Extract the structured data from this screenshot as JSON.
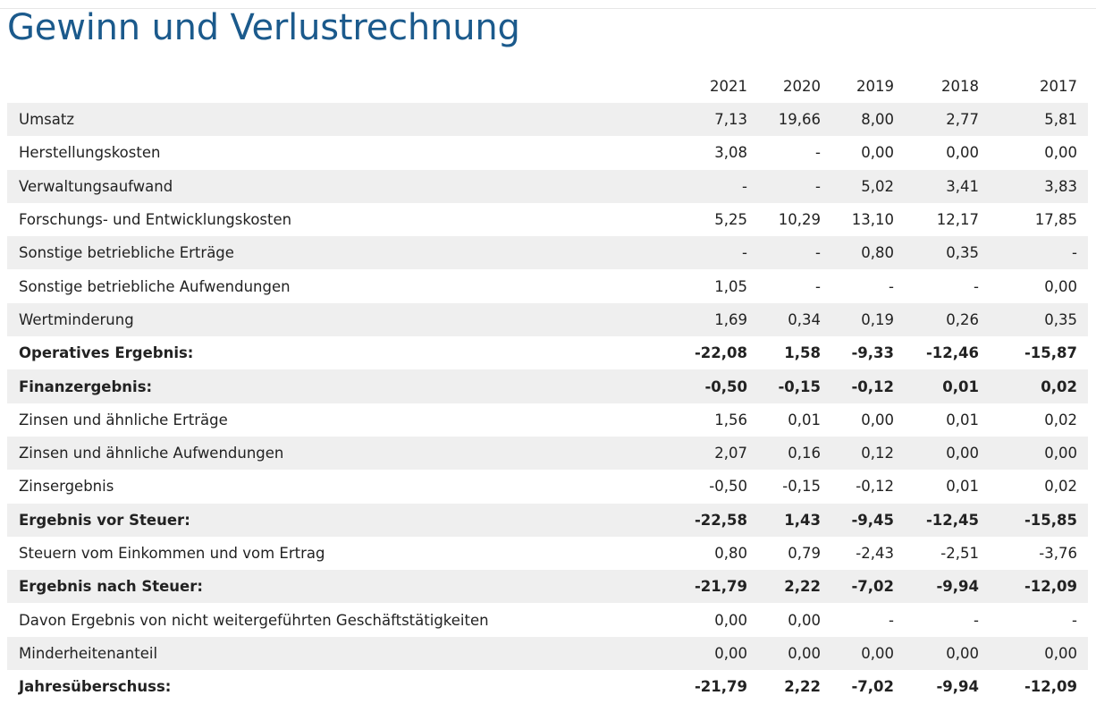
{
  "title": "Gewinn und Verlustrechnung",
  "years": [
    "2021",
    "2020",
    "2019",
    "2018",
    "2017"
  ],
  "rows": [
    {
      "label": "Umsatz",
      "bold": false,
      "values": [
        "7,13",
        "19,66",
        "8,00",
        "2,77",
        "5,81"
      ]
    },
    {
      "label": "Herstellungskosten",
      "bold": false,
      "values": [
        "3,08",
        "-",
        "0,00",
        "0,00",
        "0,00"
      ]
    },
    {
      "label": "Verwaltungsaufwand",
      "bold": false,
      "values": [
        "-",
        "-",
        "5,02",
        "3,41",
        "3,83"
      ]
    },
    {
      "label": "Forschungs- und Entwicklungskosten",
      "bold": false,
      "values": [
        "5,25",
        "10,29",
        "13,10",
        "12,17",
        "17,85"
      ]
    },
    {
      "label": "Sonstige betriebliche Erträge",
      "bold": false,
      "values": [
        "-",
        "-",
        "0,80",
        "0,35",
        "-"
      ]
    },
    {
      "label": "Sonstige betriebliche Aufwendungen",
      "bold": false,
      "values": [
        "1,05",
        "-",
        "-",
        "-",
        "0,00"
      ]
    },
    {
      "label": "Wertminderung",
      "bold": false,
      "values": [
        "1,69",
        "0,34",
        "0,19",
        "0,26",
        "0,35"
      ]
    },
    {
      "label": "Operatives Ergebnis:",
      "bold": true,
      "values": [
        "-22,08",
        "1,58",
        "-9,33",
        "-12,46",
        "-15,87"
      ]
    },
    {
      "label": "Finanzergebnis:",
      "bold": true,
      "values": [
        "-0,50",
        "-0,15",
        "-0,12",
        "0,01",
        "0,02"
      ]
    },
    {
      "label": "Zinsen und ähnliche Erträge",
      "bold": false,
      "values": [
        "1,56",
        "0,01",
        "0,00",
        "0,01",
        "0,02"
      ]
    },
    {
      "label": "Zinsen und ähnliche Aufwendungen",
      "bold": false,
      "values": [
        "2,07",
        "0,16",
        "0,12",
        "0,00",
        "0,00"
      ]
    },
    {
      "label": "Zinsergebnis",
      "bold": false,
      "values": [
        "-0,50",
        "-0,15",
        "-0,12",
        "0,01",
        "0,02"
      ]
    },
    {
      "label": "Ergebnis vor Steuer:",
      "bold": true,
      "values": [
        "-22,58",
        "1,43",
        "-9,45",
        "-12,45",
        "-15,85"
      ]
    },
    {
      "label": "Steuern vom Einkommen und vom Ertrag",
      "bold": false,
      "values": [
        "0,80",
        "0,79",
        "-2,43",
        "-2,51",
        "-3,76"
      ]
    },
    {
      "label": "Ergebnis nach Steuer:",
      "bold": true,
      "values": [
        "-21,79",
        "2,22",
        "-7,02",
        "-9,94",
        "-12,09"
      ]
    },
    {
      "label": "Davon Ergebnis von nicht weitergeführten Geschäftstätigkeiten",
      "bold": false,
      "values": [
        "0,00",
        "0,00",
        "-",
        "-",
        "-"
      ]
    },
    {
      "label": "Minderheitenanteil",
      "bold": false,
      "values": [
        "0,00",
        "0,00",
        "0,00",
        "0,00",
        "0,00"
      ]
    },
    {
      "label": "Jahresüberschuss:",
      "bold": true,
      "values": [
        "-21,79",
        "2,22",
        "-7,02",
        "-9,94",
        "-12,09"
      ]
    }
  ]
}
